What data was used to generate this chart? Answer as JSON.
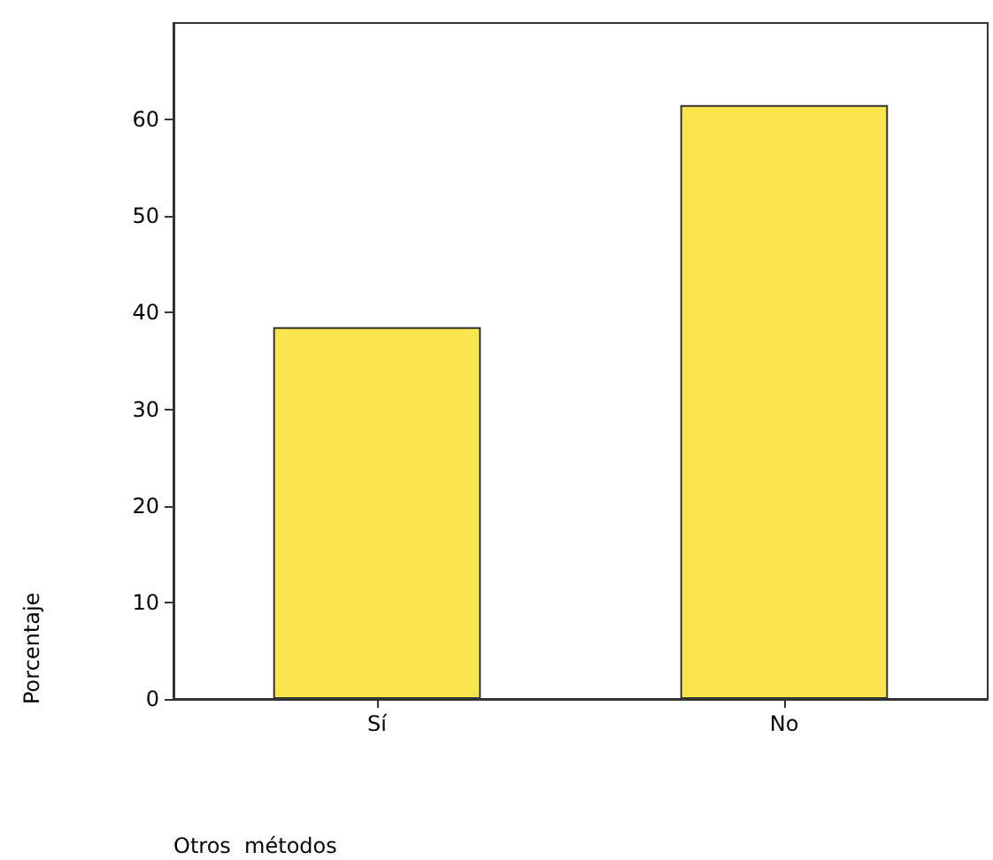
{
  "chart_data": {
    "type": "bar",
    "xlabel": "Otros  métodos",
    "ylabel": "Porcentaje",
    "categories": [
      "Sí",
      "No"
    ],
    "values": [
      38.5,
      61.5
    ],
    "color": "#fbe54f",
    "ylim": [
      0,
      70
    ],
    "yticks": [
      0,
      10,
      20,
      30,
      40,
      50,
      60
    ],
    "grid": false
  }
}
